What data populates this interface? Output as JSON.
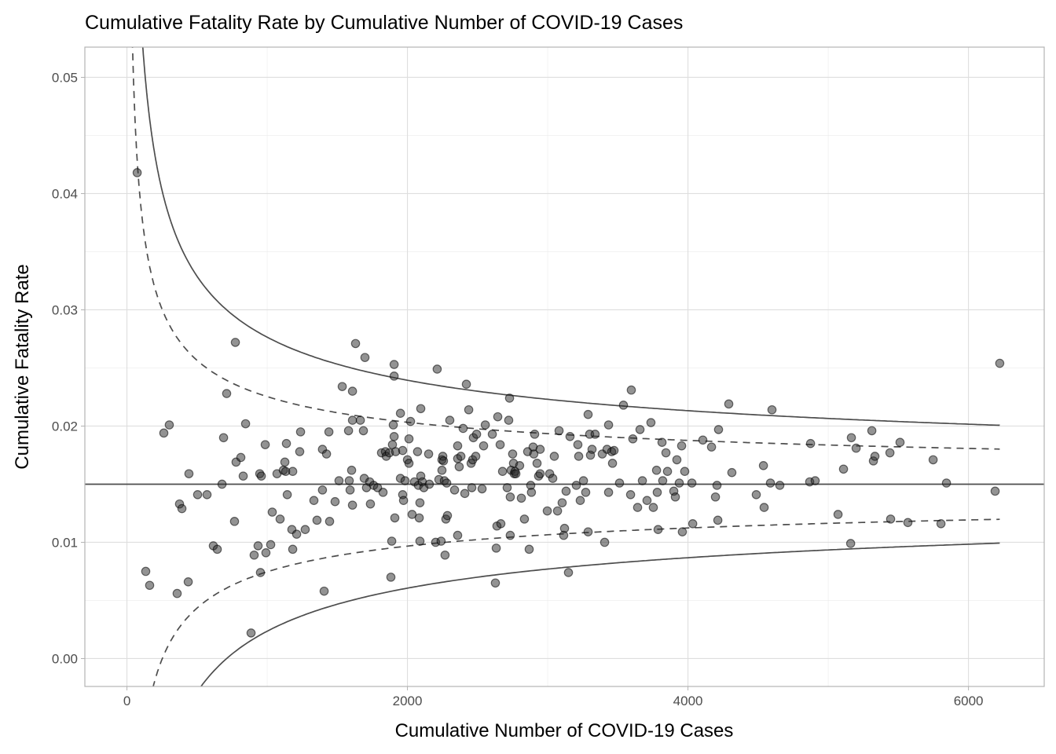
{
  "chart_data": {
    "type": "scatter",
    "title": "Cumulative Fatality Rate by Cumulative Number of COVID-19 Cases",
    "xlabel": "Cumulative Number of COVID-19 Cases",
    "ylabel": "Cumulative Fatality Rate",
    "xlim": [
      -300,
      6540
    ],
    "ylim": [
      -0.0024,
      0.0526
    ],
    "xticks": [
      0,
      2000,
      4000,
      6000
    ],
    "xtick_labels": [
      "0",
      "2000",
      "4000",
      "6000"
    ],
    "yticks": [
      0,
      0.01,
      0.02,
      0.03,
      0.04,
      0.05
    ],
    "ytick_labels": [
      "0.00",
      "0.01",
      "0.02",
      "0.03",
      "0.04",
      "0.05"
    ],
    "grid": true,
    "point_color": "#333333",
    "line_color": "#4d4d4d",
    "center_line": 0.015,
    "control_limits": [
      {
        "z": 1.96,
        "style": "dashed"
      },
      {
        "z": 3.29,
        "style": "solid"
      }
    ],
    "limits_x_max": 6223,
    "points": [
      [
        73,
        0.0418
      ],
      [
        134,
        0.0075
      ],
      [
        162,
        0.0063
      ],
      [
        263,
        0.0194
      ],
      [
        302,
        0.0201
      ],
      [
        358,
        0.0056
      ],
      [
        375,
        0.0133
      ],
      [
        392,
        0.0129
      ],
      [
        437,
        0.0066
      ],
      [
        442,
        0.0159
      ],
      [
        504,
        0.0141
      ],
      [
        571,
        0.0141
      ],
      [
        616,
        0.0097
      ],
      [
        644,
        0.0094
      ],
      [
        678,
        0.015
      ],
      [
        689,
        0.019
      ],
      [
        711,
        0.0228
      ],
      [
        767,
        0.0118
      ],
      [
        773,
        0.0272
      ],
      [
        778,
        0.0169
      ],
      [
        812,
        0.0173
      ],
      [
        829,
        0.0157
      ],
      [
        846,
        0.0202
      ],
      [
        885,
        0.0022
      ],
      [
        907,
        0.0089
      ],
      [
        935,
        0.0097
      ],
      [
        952,
        0.0074
      ],
      [
        947,
        0.0159
      ],
      [
        958,
        0.0157
      ],
      [
        986,
        0.0184
      ],
      [
        991,
        0.0091
      ],
      [
        1025,
        0.0098
      ],
      [
        1036,
        0.0126
      ],
      [
        1070,
        0.0159
      ],
      [
        1092,
        0.012
      ],
      [
        1115,
        0.0162
      ],
      [
        1126,
        0.0169
      ],
      [
        1132,
        0.0161
      ],
      [
        1137,
        0.0185
      ],
      [
        1143,
        0.0141
      ],
      [
        1176,
        0.0111
      ],
      [
        1182,
        0.0161
      ],
      [
        1182,
        0.0094
      ],
      [
        1210,
        0.0107
      ],
      [
        1232,
        0.0178
      ],
      [
        1238,
        0.0195
      ],
      [
        1271,
        0.0111
      ],
      [
        1333,
        0.0136
      ],
      [
        1355,
        0.0119
      ],
      [
        1394,
        0.018
      ],
      [
        1394,
        0.0145
      ],
      [
        1406,
        0.0058
      ],
      [
        1423,
        0.0176
      ],
      [
        1440,
        0.0195
      ],
      [
        1445,
        0.0118
      ],
      [
        1484,
        0.0135
      ],
      [
        1512,
        0.0153
      ],
      [
        1535,
        0.0234
      ],
      [
        1580,
        0.0196
      ],
      [
        1585,
        0.0153
      ],
      [
        1591,
        0.0145
      ],
      [
        1608,
        0.023
      ],
      [
        1608,
        0.0205
      ],
      [
        1608,
        0.0132
      ],
      [
        1602,
        0.0162
      ],
      [
        1630,
        0.0271
      ],
      [
        1664,
        0.0205
      ],
      [
        1686,
        0.0196
      ],
      [
        1692,
        0.0155
      ],
      [
        1697,
        0.0259
      ],
      [
        1708,
        0.0147
      ],
      [
        1731,
        0.0152
      ],
      [
        1736,
        0.0133
      ],
      [
        1759,
        0.0149
      ],
      [
        1787,
        0.0147
      ],
      [
        1815,
        0.0177
      ],
      [
        1826,
        0.0143
      ],
      [
        1843,
        0.0178
      ],
      [
        1849,
        0.0174
      ],
      [
        1871,
        0.0177
      ],
      [
        1882,
        0.007
      ],
      [
        1888,
        0.0101
      ],
      [
        1893,
        0.0184
      ],
      [
        1899,
        0.0201
      ],
      [
        1905,
        0.0253
      ],
      [
        1905,
        0.0243
      ],
      [
        1905,
        0.0191
      ],
      [
        1910,
        0.0121
      ],
      [
        1916,
        0.0178
      ],
      [
        1950,
        0.0155
      ],
      [
        1950,
        0.0211
      ],
      [
        1966,
        0.0179
      ],
      [
        1966,
        0.0141
      ],
      [
        1972,
        0.0136
      ],
      [
        1983,
        0.0153
      ],
      [
        2000,
        0.0171
      ],
      [
        2011,
        0.0189
      ],
      [
        2011,
        0.0168
      ],
      [
        2022,
        0.0204
      ],
      [
        2033,
        0.0124
      ],
      [
        2050,
        0.0152
      ],
      [
        2072,
        0.0178
      ],
      [
        2078,
        0.0149
      ],
      [
        2084,
        0.0121
      ],
      [
        2089,
        0.0101
      ],
      [
        2089,
        0.0134
      ],
      [
        2095,
        0.0157
      ],
      [
        2095,
        0.0215
      ],
      [
        2106,
        0.0152
      ],
      [
        2117,
        0.0147
      ],
      [
        2151,
        0.0176
      ],
      [
        2156,
        0.015
      ],
      [
        2201,
        0.01
      ],
      [
        2212,
        0.0249
      ],
      [
        2224,
        0.0154
      ],
      [
        2240,
        0.0101
      ],
      [
        2246,
        0.0162
      ],
      [
        2246,
        0.0171
      ],
      [
        2252,
        0.0174
      ],
      [
        2257,
        0.017
      ],
      [
        2263,
        0.0153
      ],
      [
        2268,
        0.0089
      ],
      [
        2274,
        0.012
      ],
      [
        2280,
        0.0151
      ],
      [
        2285,
        0.0123
      ],
      [
        2302,
        0.0205
      ],
      [
        2336,
        0.0145
      ],
      [
        2358,
        0.0106
      ],
      [
        2358,
        0.0172
      ],
      [
        2358,
        0.0183
      ],
      [
        2369,
        0.0165
      ],
      [
        2381,
        0.0174
      ],
      [
        2397,
        0.0198
      ],
      [
        2409,
        0.0142
      ],
      [
        2420,
        0.0236
      ],
      [
        2437,
        0.0214
      ],
      [
        2454,
        0.0168
      ],
      [
        2459,
        0.0147
      ],
      [
        2465,
        0.0171
      ],
      [
        2470,
        0.019
      ],
      [
        2487,
        0.0174
      ],
      [
        2493,
        0.0193
      ],
      [
        2532,
        0.0146
      ],
      [
        2543,
        0.0183
      ],
      [
        2555,
        0.0201
      ],
      [
        2605,
        0.0193
      ],
      [
        2627,
        0.0065
      ],
      [
        2633,
        0.0095
      ],
      [
        2638,
        0.0114
      ],
      [
        2644,
        0.0208
      ],
      [
        2661,
        0.0184
      ],
      [
        2666,
        0.0116
      ],
      [
        2678,
        0.0161
      ],
      [
        2711,
        0.0147
      ],
      [
        2722,
        0.0205
      ],
      [
        2728,
        0.0224
      ],
      [
        2733,
        0.0106
      ],
      [
        2733,
        0.0139
      ],
      [
        2739,
        0.0162
      ],
      [
        2750,
        0.0176
      ],
      [
        2756,
        0.0168
      ],
      [
        2761,
        0.0159
      ],
      [
        2767,
        0.0161
      ],
      [
        2773,
        0.0159
      ],
      [
        2800,
        0.0166
      ],
      [
        2812,
        0.0138
      ],
      [
        2834,
        0.012
      ],
      [
        2857,
        0.0178
      ],
      [
        2868,
        0.0094
      ],
      [
        2879,
        0.0149
      ],
      [
        2884,
        0.0143
      ],
      [
        2896,
        0.0182
      ],
      [
        2901,
        0.0176
      ],
      [
        2907,
        0.0193
      ],
      [
        2924,
        0.0168
      ],
      [
        2935,
        0.0157
      ],
      [
        2946,
        0.0159
      ],
      [
        2946,
        0.018
      ],
      [
        2997,
        0.0127
      ],
      [
        3014,
        0.0159
      ],
      [
        3036,
        0.0155
      ],
      [
        3047,
        0.0174
      ],
      [
        3070,
        0.0127
      ],
      [
        3081,
        0.0196
      ],
      [
        3103,
        0.0134
      ],
      [
        3114,
        0.0106
      ],
      [
        3120,
        0.0112
      ],
      [
        3131,
        0.0144
      ],
      [
        3148,
        0.0074
      ],
      [
        3159,
        0.0191
      ],
      [
        3204,
        0.0149
      ],
      [
        3215,
        0.0184
      ],
      [
        3221,
        0.0174
      ],
      [
        3232,
        0.0136
      ],
      [
        3255,
        0.0153
      ],
      [
        3271,
        0.0143
      ],
      [
        3288,
        0.0109
      ],
      [
        3288,
        0.021
      ],
      [
        3299,
        0.0193
      ],
      [
        3305,
        0.0175
      ],
      [
        3316,
        0.018
      ],
      [
        3338,
        0.0193
      ],
      [
        3389,
        0.0176
      ],
      [
        3406,
        0.01
      ],
      [
        3423,
        0.018
      ],
      [
        3434,
        0.0143
      ],
      [
        3434,
        0.0201
      ],
      [
        3456,
        0.0178
      ],
      [
        3462,
        0.0168
      ],
      [
        3473,
        0.0179
      ],
      [
        3512,
        0.0151
      ],
      [
        3540,
        0.0218
      ],
      [
        3591,
        0.0141
      ],
      [
        3596,
        0.0231
      ],
      [
        3607,
        0.0189
      ],
      [
        3641,
        0.013
      ],
      [
        3658,
        0.0197
      ],
      [
        3675,
        0.0153
      ],
      [
        3708,
        0.0136
      ],
      [
        3736,
        0.0203
      ],
      [
        3753,
        0.013
      ],
      [
        3776,
        0.0162
      ],
      [
        3781,
        0.0143
      ],
      [
        3787,
        0.0111
      ],
      [
        3815,
        0.0186
      ],
      [
        3820,
        0.0153
      ],
      [
        3843,
        0.0177
      ],
      [
        3854,
        0.0161
      ],
      [
        3899,
        0.0144
      ],
      [
        3910,
        0.0139
      ],
      [
        3921,
        0.0171
      ],
      [
        3938,
        0.0151
      ],
      [
        3955,
        0.0183
      ],
      [
        3960,
        0.0109
      ],
      [
        3977,
        0.0161
      ],
      [
        4028,
        0.0151
      ],
      [
        4034,
        0.0116
      ],
      [
        4106,
        0.0188
      ],
      [
        4168,
        0.0182
      ],
      [
        4196,
        0.0139
      ],
      [
        4207,
        0.0149
      ],
      [
        4213,
        0.0119
      ],
      [
        4218,
        0.0197
      ],
      [
        4291,
        0.0219
      ],
      [
        4313,
        0.016
      ],
      [
        4487,
        0.0141
      ],
      [
        4538,
        0.0166
      ],
      [
        4543,
        0.013
      ],
      [
        4588,
        0.0151
      ],
      [
        4599,
        0.0214
      ],
      [
        4655,
        0.0149
      ],
      [
        4868,
        0.0152
      ],
      [
        4874,
        0.0185
      ],
      [
        4907,
        0.0153
      ],
      [
        5070,
        0.0124
      ],
      [
        5109,
        0.0163
      ],
      [
        5160,
        0.0099
      ],
      [
        5165,
        0.019
      ],
      [
        5199,
        0.0181
      ],
      [
        5311,
        0.0196
      ],
      [
        5322,
        0.017
      ],
      [
        5333,
        0.0174
      ],
      [
        5440,
        0.0177
      ],
      [
        5445,
        0.012
      ],
      [
        5512,
        0.0186
      ],
      [
        5568,
        0.0117
      ],
      [
        5748,
        0.0171
      ],
      [
        5804,
        0.0116
      ],
      [
        5843,
        0.0151
      ],
      [
        6190,
        0.0144
      ],
      [
        6223,
        0.0254
      ]
    ]
  }
}
